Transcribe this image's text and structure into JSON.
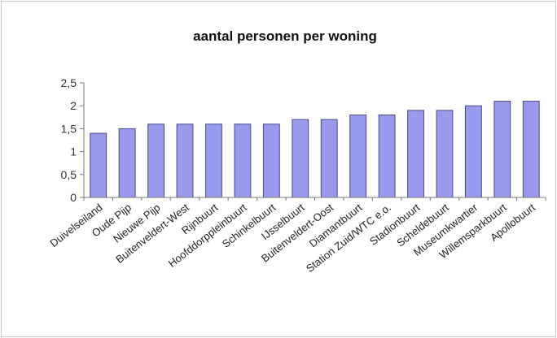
{
  "chart_data": {
    "type": "bar",
    "title": "aantal personen per woning",
    "xlabel": "",
    "ylabel": "",
    "ylim": [
      0,
      2.5
    ],
    "yticks": [
      "0",
      "0,5",
      "1",
      "1,5",
      "2",
      "2,5"
    ],
    "grid": false,
    "categories": [
      "Duivelseiland",
      "Oude Pijp",
      "Nieuwe Pijp",
      "Buitenveldert-West",
      "Rijnbuurt",
      "Hoofddorppleinbuurt",
      "Schinkelbuurt",
      "IJsselbuurt",
      "Buitenveldert-Oost",
      "Diamantbuurt",
      "Station Zuid/WTC e.o.",
      "Stadionbuurt",
      "Scheldebuurt",
      "Museumkwartier",
      "Willemsparkbuurt",
      "Apollobuurt"
    ],
    "values": [
      1.4,
      1.5,
      1.6,
      1.6,
      1.6,
      1.6,
      1.6,
      1.7,
      1.7,
      1.8,
      1.8,
      1.9,
      1.9,
      2.0,
      2.1,
      2.1
    ],
    "colors": {
      "bar": "#9999ee",
      "bar_edge": "#4a4a88",
      "axis": "#777777"
    }
  }
}
